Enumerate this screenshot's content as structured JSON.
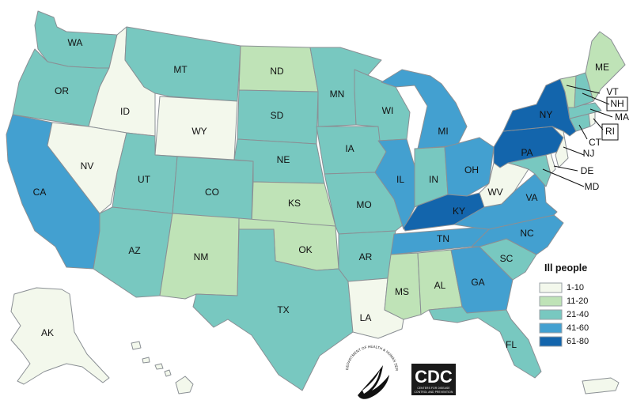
{
  "colors": {
    "1-10": "#f3f8ec",
    "11-20": "#bfe3b7",
    "21-40": "#78c8c0",
    "41-60": "#43a0d0",
    "61-80": "#1365ac",
    "border": "#8a8f94"
  },
  "legend": {
    "title": "Ill people",
    "items": [
      {
        "label": "1-10",
        "bin": "1-10"
      },
      {
        "label": "11-20",
        "bin": "11-20"
      },
      {
        "label": "21-40",
        "bin": "21-40"
      },
      {
        "label": "41-60",
        "bin": "41-60"
      },
      {
        "label": "61-80",
        "bin": "61-80"
      }
    ]
  },
  "states": [
    {
      "abbr": "WA",
      "bin": "21-40"
    },
    {
      "abbr": "OR",
      "bin": "21-40"
    },
    {
      "abbr": "CA",
      "bin": "41-60"
    },
    {
      "abbr": "ID",
      "bin": "1-10"
    },
    {
      "abbr": "NV",
      "bin": "1-10"
    },
    {
      "abbr": "MT",
      "bin": "21-40"
    },
    {
      "abbr": "WY",
      "bin": "1-10"
    },
    {
      "abbr": "UT",
      "bin": "21-40"
    },
    {
      "abbr": "AZ",
      "bin": "21-40"
    },
    {
      "abbr": "CO",
      "bin": "21-40"
    },
    {
      "abbr": "NM",
      "bin": "11-20"
    },
    {
      "abbr": "ND",
      "bin": "11-20"
    },
    {
      "abbr": "SD",
      "bin": "21-40"
    },
    {
      "abbr": "NE",
      "bin": "21-40"
    },
    {
      "abbr": "KS",
      "bin": "11-20"
    },
    {
      "abbr": "OK",
      "bin": "11-20"
    },
    {
      "abbr": "TX",
      "bin": "21-40"
    },
    {
      "abbr": "MN",
      "bin": "21-40"
    },
    {
      "abbr": "IA",
      "bin": "21-40"
    },
    {
      "abbr": "MO",
      "bin": "21-40"
    },
    {
      "abbr": "AR",
      "bin": "21-40"
    },
    {
      "abbr": "LA",
      "bin": "1-10"
    },
    {
      "abbr": "WI",
      "bin": "21-40"
    },
    {
      "abbr": "IL",
      "bin": "41-60"
    },
    {
      "abbr": "MI",
      "bin": "41-60"
    },
    {
      "abbr": "IN",
      "bin": "21-40"
    },
    {
      "abbr": "OH",
      "bin": "41-60"
    },
    {
      "abbr": "KY",
      "bin": "61-80"
    },
    {
      "abbr": "TN",
      "bin": "41-60"
    },
    {
      "abbr": "MS",
      "bin": "11-20"
    },
    {
      "abbr": "AL",
      "bin": "11-20"
    },
    {
      "abbr": "GA",
      "bin": "41-60"
    },
    {
      "abbr": "FL",
      "bin": "21-40"
    },
    {
      "abbr": "SC",
      "bin": "21-40"
    },
    {
      "abbr": "NC",
      "bin": "41-60"
    },
    {
      "abbr": "VA",
      "bin": "41-60"
    },
    {
      "abbr": "WV",
      "bin": "1-10"
    },
    {
      "abbr": "MD",
      "bin": "21-40"
    },
    {
      "abbr": "DE",
      "bin": "1-10"
    },
    {
      "abbr": "PA",
      "bin": "61-80"
    },
    {
      "abbr": "NJ",
      "bin": "1-10"
    },
    {
      "abbr": "NY",
      "bin": "61-80"
    },
    {
      "abbr": "CT",
      "bin": "21-40"
    },
    {
      "abbr": "RI",
      "bin": "1-10"
    },
    {
      "abbr": "MA",
      "bin": "21-40"
    },
    {
      "abbr": "VT",
      "bin": "11-20"
    },
    {
      "abbr": "NH",
      "bin": "21-40"
    },
    {
      "abbr": "ME",
      "bin": "11-20"
    },
    {
      "abbr": "AK",
      "bin": "1-10"
    },
    {
      "abbr": "HI",
      "bin": "1-10"
    },
    {
      "abbr": "PR",
      "bin": "1-10"
    }
  ],
  "logos": {
    "hhs_text": "DEPARTMENT OF HEALTH & HUMAN SERVICES USA",
    "cdc_text": "CDC",
    "cdc_subtext_1": "CENTERS FOR DISEASE",
    "cdc_subtext_2": "CONTROL AND PREVENTION"
  }
}
